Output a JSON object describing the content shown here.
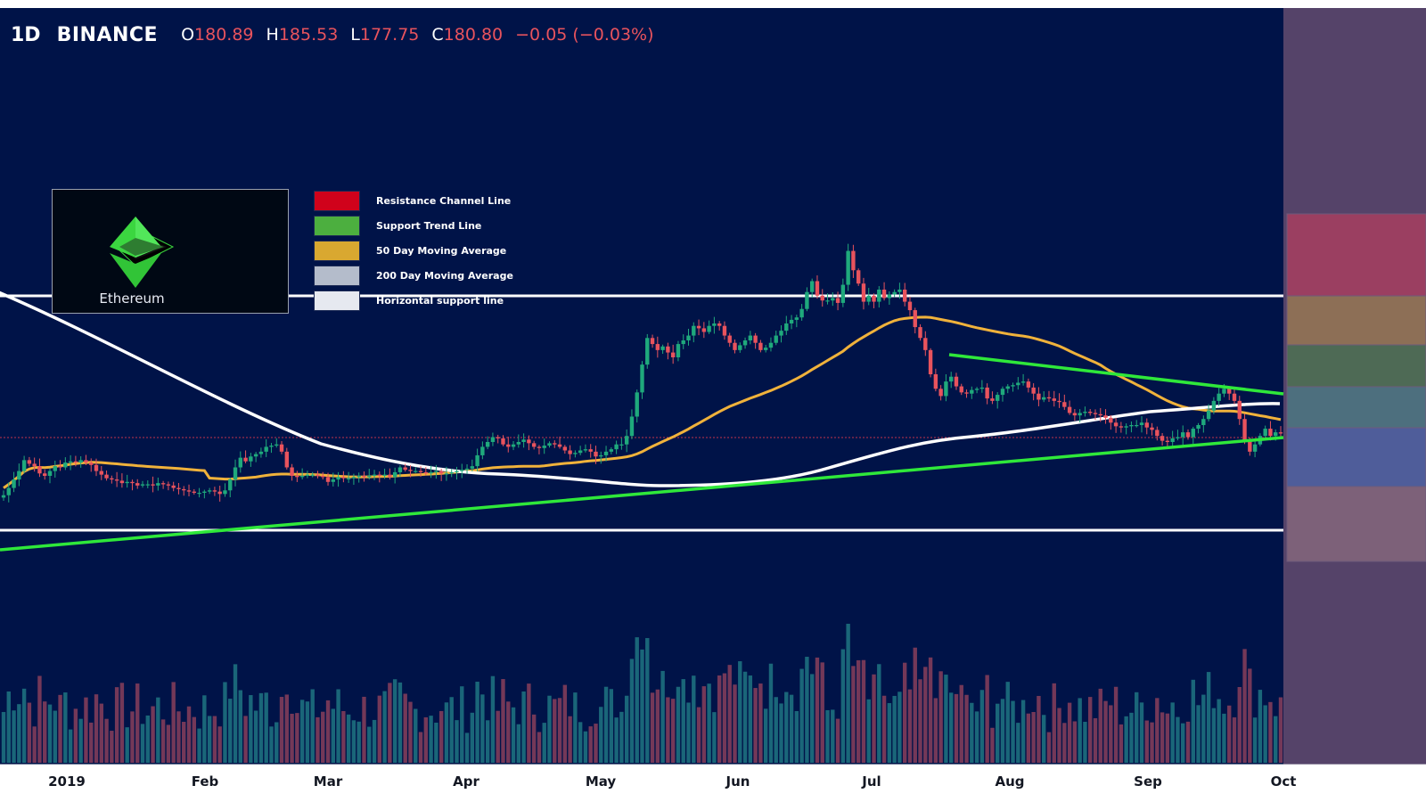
{
  "header": {
    "timeframe": "1D",
    "exchange": "BINANCE",
    "o_label": "O",
    "o_value": "180.89",
    "h_label": "H",
    "h_value": "185.53",
    "l_label": "L",
    "l_value": "177.75",
    "c_label": "C",
    "c_value": "180.80",
    "change": "−0.05 (−0.03%)"
  },
  "logo": {
    "label": "Ethereum",
    "icon": "ethereum-diamond-icon"
  },
  "legend": [
    {
      "label": "Resistance Channel Line",
      "color": "#d0021b"
    },
    {
      "label": "Support Trend Line",
      "color": "#4caf3f"
    },
    {
      "label": "50 Day Moving Average",
      "color": "#d9a830"
    },
    {
      "label": "200 Day Moving Average",
      "color": "#b4bccb"
    },
    {
      "label": "Horizontal support line",
      "color": "#e6e9f0"
    }
  ],
  "colors": {
    "background": "#001348",
    "up": "#1fa97c",
    "down": "#e8535d",
    "ma50": "#f0b23b",
    "ma200": "#ffffff",
    "trend": "#2fe83a",
    "horizontal": "#ffffff",
    "right_panel": "#554369"
  },
  "chart_data": {
    "type": "candlestick",
    "symbol": "ETH",
    "exchange": "BINANCE",
    "timeframe": "1D",
    "x_labels": [
      "2019",
      "Feb",
      "Mar",
      "Apr",
      "May",
      "Jun",
      "Jul",
      "Aug",
      "Sep",
      "Oct"
    ],
    "last_candle": {
      "open": 180.89,
      "high": 185.53,
      "low": 177.75,
      "close": 180.8,
      "change": -0.05,
      "change_pct": -0.03
    },
    "close": [
      130,
      136,
      143,
      150,
      159,
      156,
      154,
      148,
      146,
      150,
      154,
      153,
      157,
      158,
      157,
      159,
      157,
      155,
      150,
      147,
      144,
      143,
      142,
      140,
      141,
      140,
      138,
      139,
      139,
      138,
      140,
      139,
      138,
      136,
      135,
      134,
      133,
      132,
      132,
      133,
      134,
      133,
      131,
      134,
      143,
      153,
      161,
      158,
      162,
      164,
      166,
      170,
      171,
      172,
      166,
      153,
      146,
      145,
      146,
      147,
      147,
      146,
      145,
      141,
      143,
      145,
      144,
      144,
      145,
      146,
      145,
      146,
      147,
      146,
      147,
      145,
      149,
      153,
      151,
      150,
      150,
      149,
      148,
      149,
      150,
      148,
      148,
      149,
      150,
      151,
      152,
      154,
      163,
      170,
      174,
      178,
      177,
      172,
      170,
      172,
      174,
      176,
      173,
      170,
      169,
      171,
      173,
      172,
      170,
      167,
      164,
      165,
      167,
      168,
      166,
      162,
      163,
      166,
      168,
      172,
      172,
      179,
      195,
      215,
      238,
      260,
      255,
      250,
      253,
      248,
      244,
      255,
      258,
      262,
      270,
      268,
      265,
      270,
      272,
      270,
      262,
      256,
      250,
      254,
      258,
      262,
      256,
      250,
      252,
      256,
      262,
      266,
      272,
      275,
      277,
      284,
      298,
      307,
      295,
      291,
      291,
      293,
      289,
      304,
      332,
      316,
      305,
      290,
      295,
      290,
      300,
      293,
      296,
      298,
      300,
      290,
      283,
      269,
      260,
      250,
      230,
      218,
      212,
      224,
      228,
      220,
      215,
      214,
      217,
      218,
      219,
      210,
      208,
      213,
      218,
      220,
      221,
      223,
      224,
      219,
      214,
      209,
      211,
      210,
      208,
      207,
      203,
      198,
      196,
      198,
      199,
      198,
      197,
      196,
      194,
      190,
      187,
      186,
      187,
      188,
      188,
      190,
      186,
      184,
      179,
      175,
      174,
      177,
      178,
      182,
      178,
      185,
      188,
      193,
      200,
      208,
      214,
      218,
      214,
      208,
      193,
      175,
      166,
      172,
      179,
      185,
      179,
      182,
      181
    ],
    "series": [
      {
        "name": "Resistance Channel Line",
        "type": "line",
        "values": [
          332,
          332
        ]
      },
      {
        "name": "Horizontal support line",
        "type": "line",
        "values": [
          124,
          124
        ]
      },
      {
        "name": "Support Trend Line",
        "type": "line",
        "values": [
          116,
          182
        ]
      },
      {
        "name": "Support Trend Line",
        "type": "line",
        "values": [
          253,
          215
        ]
      },
      {
        "name": "50 Day Moving Average",
        "type": "line"
      },
      {
        "name": "200 Day Moving Average",
        "type": "line"
      }
    ],
    "volume": {
      "shown": true,
      "colored_by_direction": true
    },
    "ylim": [
      90,
      370
    ],
    "grid": false
  }
}
